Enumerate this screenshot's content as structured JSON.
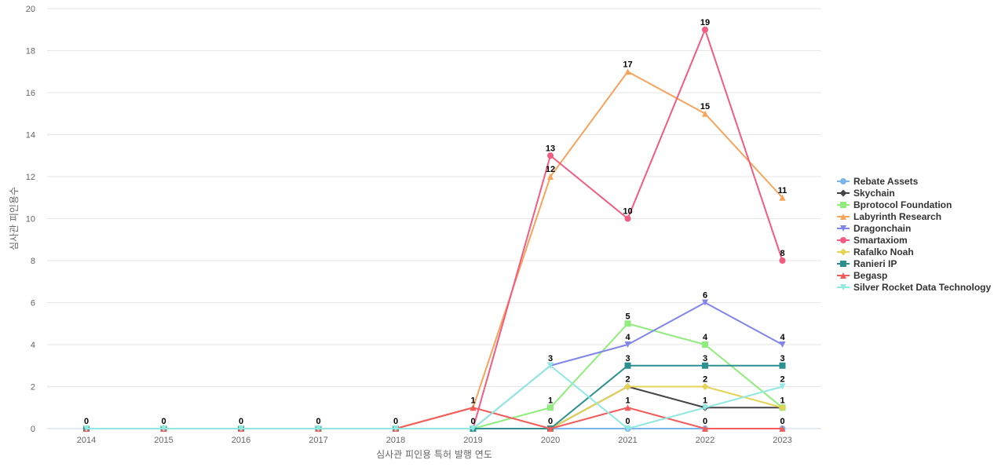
{
  "chart_data": {
    "type": "line",
    "title": "",
    "xlabel": "심사관 피인용 특허 발행 연도",
    "ylabel": "심사관 피인용수",
    "ylim": [
      0,
      20
    ],
    "yticks": [
      0,
      2,
      4,
      6,
      8,
      10,
      12,
      14,
      16,
      18,
      20
    ],
    "grid": true,
    "legend_position": "right",
    "categories": [
      "2014",
      "2015",
      "2016",
      "2017",
      "2018",
      "2019",
      "2020",
      "2021",
      "2022",
      "2023"
    ],
    "series": [
      {
        "name": "Rebate Assets",
        "color": "#7cb5ec",
        "marker": "circle",
        "values": [
          0,
          0,
          0,
          0,
          0,
          0,
          0,
          0,
          0,
          0
        ]
      },
      {
        "name": "Skychain",
        "color": "#434348",
        "marker": "diamond",
        "values": [
          0,
          0,
          0,
          0,
          0,
          0,
          0,
          2,
          1,
          1
        ]
      },
      {
        "name": "Bprotocol Foundation",
        "color": "#90ed7d",
        "marker": "square",
        "values": [
          0,
          0,
          0,
          0,
          0,
          0,
          1,
          5,
          4,
          1
        ]
      },
      {
        "name": "Labyrinth Research",
        "color": "#f7a35c",
        "marker": "triangle",
        "values": [
          0,
          0,
          0,
          0,
          0,
          1,
          12,
          17,
          15,
          11
        ]
      },
      {
        "name": "Dragonchain",
        "color": "#8085e9",
        "marker": "triangle-down",
        "values": [
          0,
          0,
          0,
          0,
          0,
          0,
          3,
          4,
          6,
          4
        ]
      },
      {
        "name": "Smartaxiom",
        "color": "#f15c80",
        "marker": "circle",
        "values": [
          0,
          0,
          0,
          0,
          0,
          0,
          13,
          10,
          19,
          8
        ]
      },
      {
        "name": "Rafalko Noah",
        "color": "#e4d354",
        "marker": "diamond",
        "values": [
          0,
          0,
          0,
          0,
          0,
          0,
          0,
          2,
          2,
          1
        ]
      },
      {
        "name": "Ranieri IP",
        "color": "#2b908f",
        "marker": "square",
        "values": [
          0,
          0,
          0,
          0,
          0,
          0,
          0,
          3,
          3,
          3
        ]
      },
      {
        "name": "Begasp",
        "color": "#f45b5b",
        "marker": "triangle",
        "values": [
          0,
          0,
          0,
          0,
          0,
          1,
          0,
          1,
          0,
          0
        ]
      },
      {
        "name": "Silver Rocket Data Technology",
        "color": "#91e8e1",
        "marker": "triangle-down",
        "values": [
          0,
          0,
          0,
          0,
          0,
          0,
          3,
          0,
          1,
          2
        ]
      }
    ],
    "data_labels": [
      {
        "x": "2014",
        "text": "0"
      },
      {
        "x": "2015",
        "text": "0"
      },
      {
        "x": "2016",
        "text": "0"
      },
      {
        "x": "2017",
        "text": "0"
      },
      {
        "x": "2018",
        "text": "0"
      },
      {
        "x": "2019",
        "text": "1",
        "y": 1
      },
      {
        "x": "2019",
        "text": "0",
        "y": 0
      },
      {
        "x": "2020",
        "text": "13",
        "y": 13
      },
      {
        "x": "2020",
        "text": "12",
        "y": 12
      },
      {
        "x": "2020",
        "text": "3",
        "y": 3
      },
      {
        "x": "2020",
        "text": "1",
        "y": 1
      },
      {
        "x": "2020",
        "text": "0",
        "y": 0
      },
      {
        "x": "2021",
        "text": "17",
        "y": 17
      },
      {
        "x": "2021",
        "text": "10",
        "y": 10
      },
      {
        "x": "2021",
        "text": "5",
        "y": 5
      },
      {
        "x": "2021",
        "text": "4",
        "y": 4
      },
      {
        "x": "2021",
        "text": "3",
        "y": 3
      },
      {
        "x": "2021",
        "text": "2",
        "y": 2
      },
      {
        "x": "2021",
        "text": "1",
        "y": 1
      },
      {
        "x": "2021",
        "text": "0",
        "y": 0
      },
      {
        "x": "2022",
        "text": "19",
        "y": 19
      },
      {
        "x": "2022",
        "text": "15",
        "y": 15
      },
      {
        "x": "2022",
        "text": "6",
        "y": 6
      },
      {
        "x": "2022",
        "text": "4",
        "y": 4
      },
      {
        "x": "2022",
        "text": "3",
        "y": 3
      },
      {
        "x": "2022",
        "text": "2",
        "y": 2
      },
      {
        "x": "2022",
        "text": "1",
        "y": 1
      },
      {
        "x": "2022",
        "text": "0",
        "y": 0
      },
      {
        "x": "2023",
        "text": "11",
        "y": 11
      },
      {
        "x": "2023",
        "text": "8",
        "y": 8
      },
      {
        "x": "2023",
        "text": "4",
        "y": 4
      },
      {
        "x": "2023",
        "text": "3",
        "y": 3
      },
      {
        "x": "2023",
        "text": "2",
        "y": 2
      },
      {
        "x": "2023",
        "text": "1",
        "y": 1
      },
      {
        "x": "2023",
        "text": "0",
        "y": 0
      }
    ]
  }
}
